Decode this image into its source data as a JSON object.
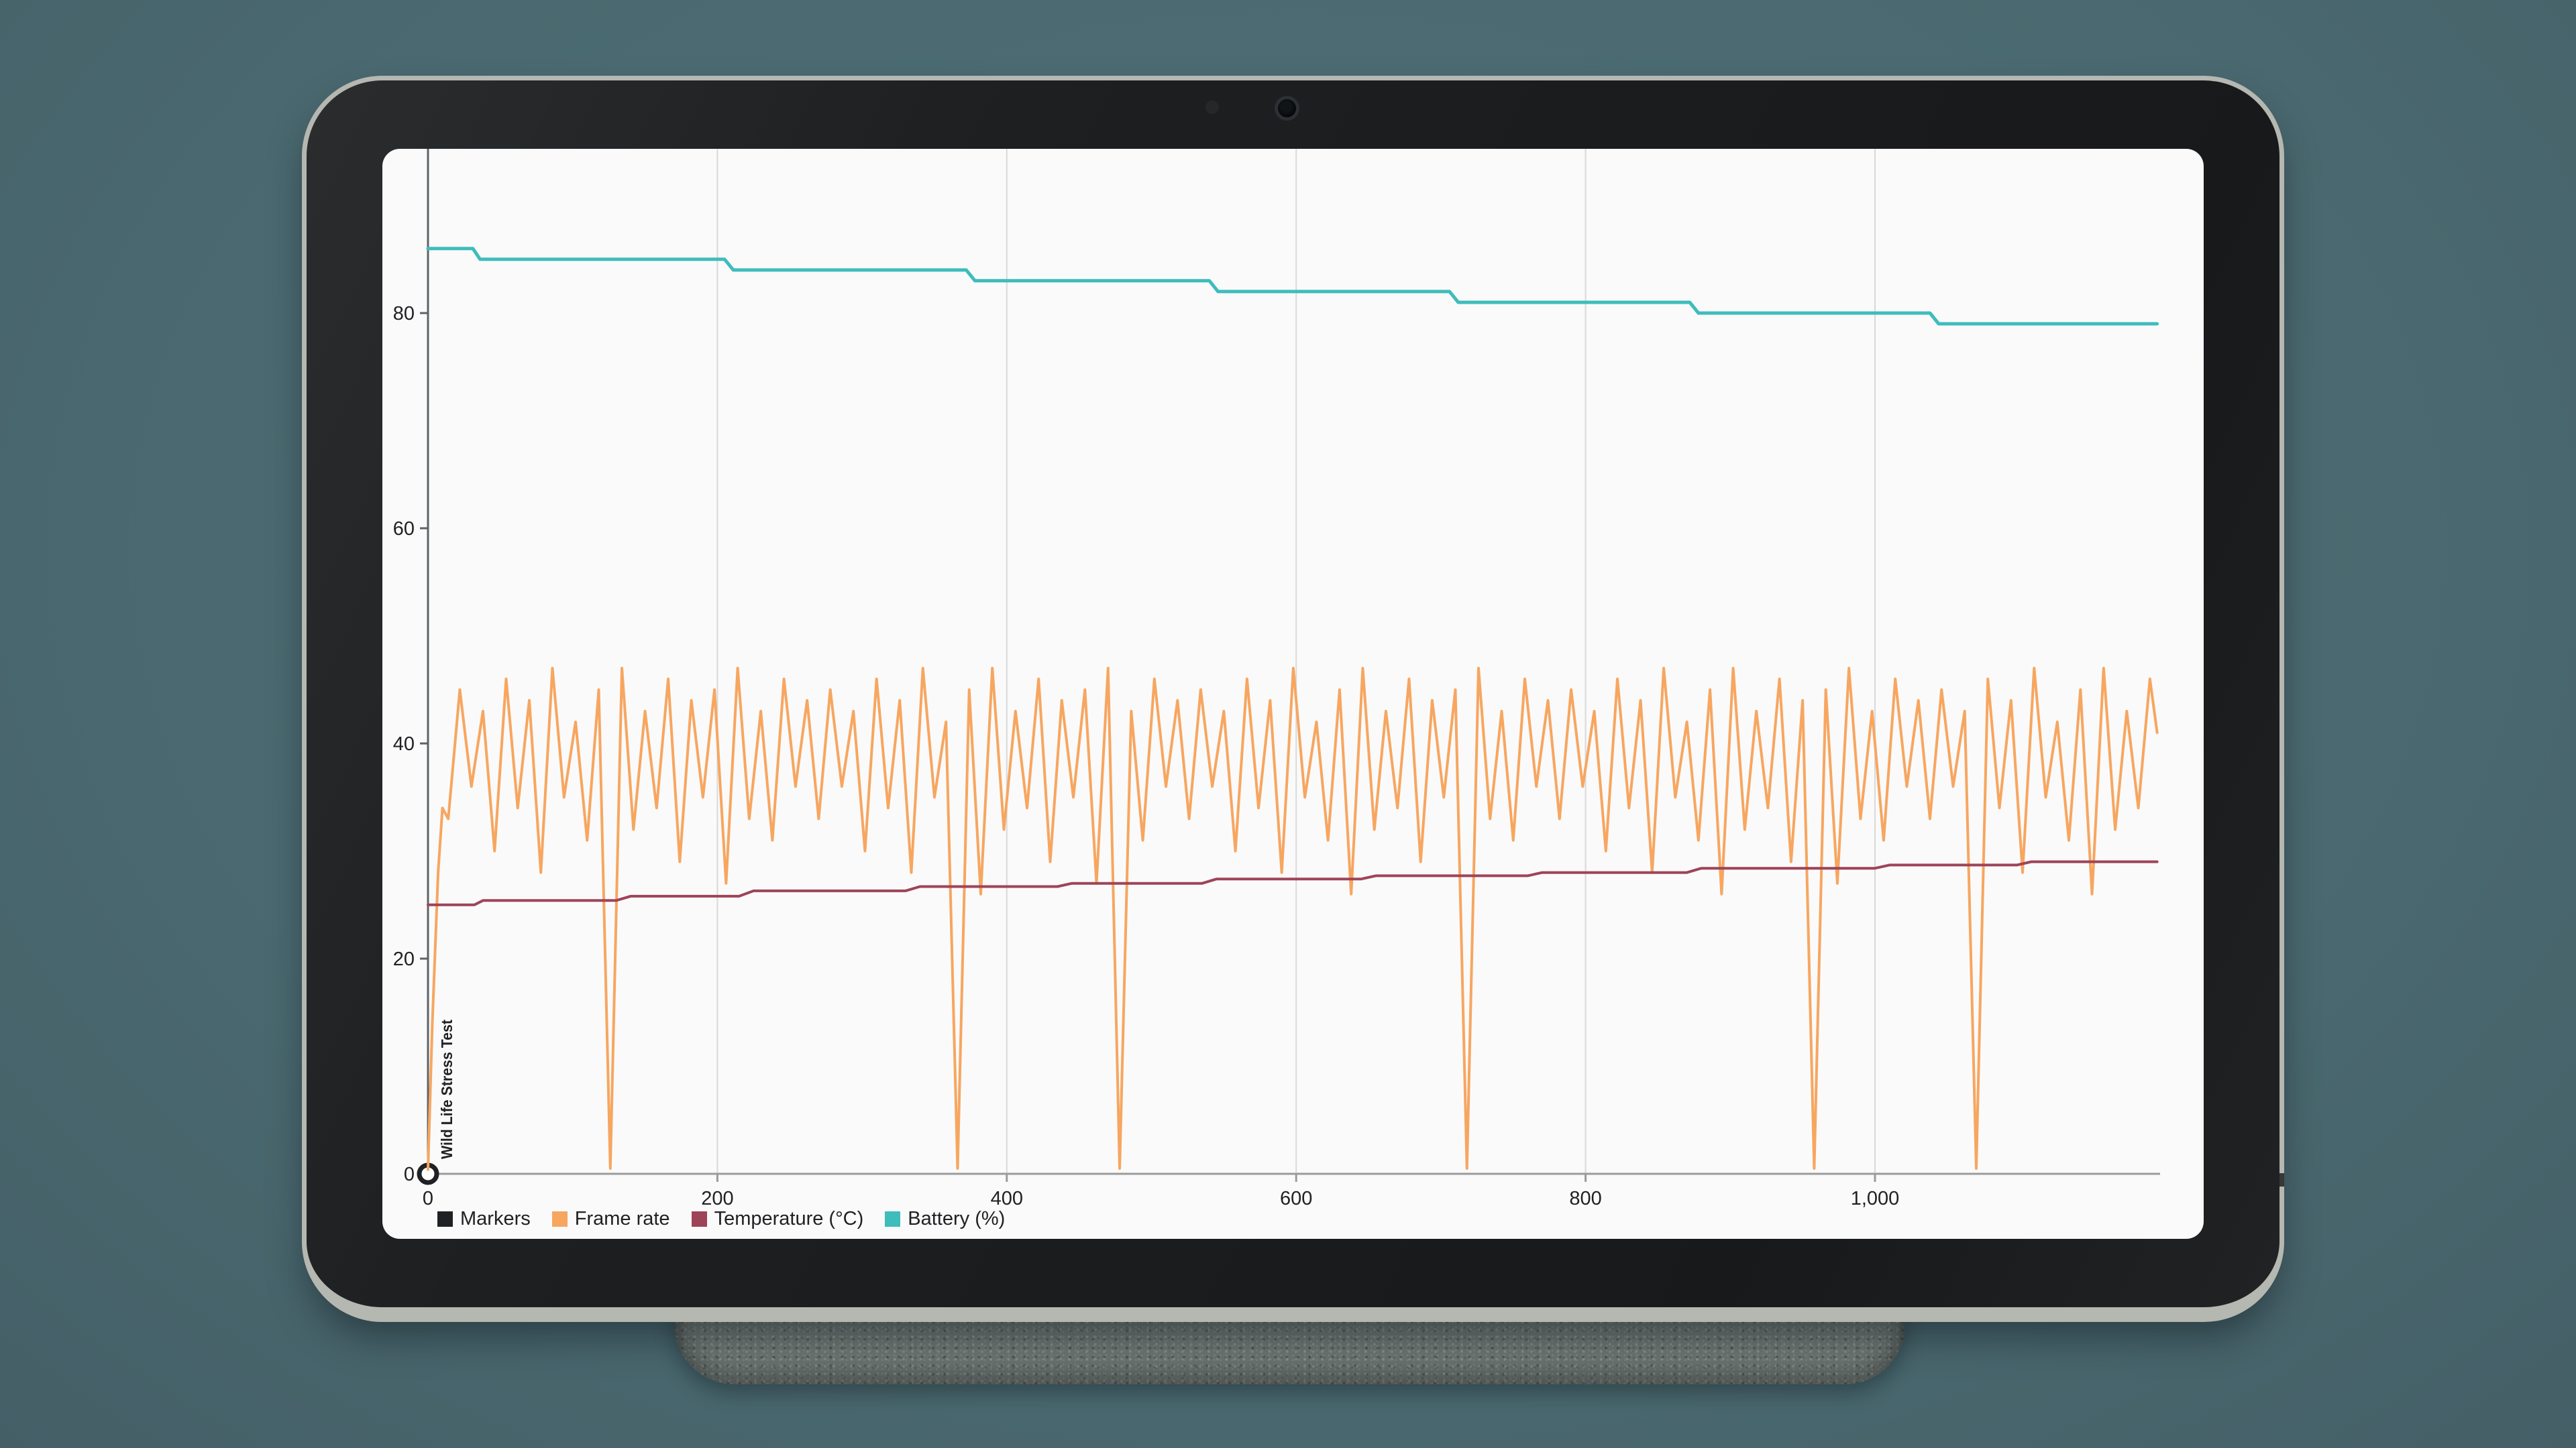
{
  "palette": {
    "bg": "#4a6970",
    "bg_hi": "#4f6e77",
    "bg_lo": "#455f67",
    "bezel": "#1d1f21",
    "frame_edge": "#b5b7b1",
    "dock": "#6e7773",
    "screen": "#fafafa",
    "gridline": "#d9d9d9",
    "axis_x": "#9b9b9b",
    "axis_y": "#5f6368",
    "text": "#202124"
  },
  "device": {
    "camera_icon": "front-camera-dot",
    "sensor_icon": "ambient-light-sensor-dot",
    "dock_name": "charging-speaker-dock"
  },
  "chart_data": {
    "type": "line",
    "title": "",
    "xlabel": "",
    "ylabel": "",
    "xlim": [
      0,
      1197
    ],
    "ylim": [
      0,
      95.3
    ],
    "grid": "vertical-only",
    "legend_position": "bottom-left",
    "x_ticks": {
      "values": [
        0,
        200,
        400,
        600,
        800,
        1000
      ],
      "labels": [
        "0",
        "200",
        "400",
        "600",
        "800",
        "1,000"
      ]
    },
    "y_ticks": {
      "values": [
        0,
        20,
        40,
        60,
        80
      ],
      "labels": [
        "0",
        "20",
        "40",
        "60",
        "80"
      ]
    },
    "series": [
      {
        "name": "Markers",
        "kind": "scatter",
        "color": "#202124",
        "marker": "ring",
        "annotation": "Wild Life Stress Test",
        "stroke_width": 7,
        "points": [
          [
            0,
            0
          ]
        ]
      },
      {
        "name": "Frame rate",
        "kind": "line",
        "color": "#f7a660",
        "stroke_width": 4,
        "points": [
          [
            0,
            0.4
          ],
          [
            3,
            14
          ],
          [
            7,
            28
          ],
          [
            10,
            34
          ],
          [
            14,
            33
          ],
          [
            22,
            45
          ],
          [
            30,
            36
          ],
          [
            38,
            43
          ],
          [
            46,
            30
          ],
          [
            54,
            46
          ],
          [
            62,
            34
          ],
          [
            70,
            44
          ],
          [
            78,
            28
          ],
          [
            86,
            47
          ],
          [
            94,
            35
          ],
          [
            102,
            42
          ],
          [
            110,
            31
          ],
          [
            118,
            45
          ],
          [
            126,
            0.5
          ],
          [
            134,
            47
          ],
          [
            142,
            32
          ],
          [
            150,
            43
          ],
          [
            158,
            34
          ],
          [
            166,
            46
          ],
          [
            174,
            29
          ],
          [
            182,
            44
          ],
          [
            190,
            35
          ],
          [
            198,
            45
          ],
          [
            206,
            27
          ],
          [
            214,
            47
          ],
          [
            222,
            33
          ],
          [
            230,
            43
          ],
          [
            238,
            31
          ],
          [
            246,
            46
          ],
          [
            254,
            36
          ],
          [
            262,
            44
          ],
          [
            270,
            33
          ],
          [
            278,
            45
          ],
          [
            286,
            36
          ],
          [
            294,
            43
          ],
          [
            302,
            30
          ],
          [
            310,
            46
          ],
          [
            318,
            34
          ],
          [
            326,
            44
          ],
          [
            334,
            28
          ],
          [
            342,
            47
          ],
          [
            350,
            35
          ],
          [
            358,
            42
          ],
          [
            366,
            0.5
          ],
          [
            374,
            45
          ],
          [
            382,
            26
          ],
          [
            390,
            47
          ],
          [
            398,
            32
          ],
          [
            406,
            43
          ],
          [
            414,
            34
          ],
          [
            422,
            46
          ],
          [
            430,
            29
          ],
          [
            438,
            44
          ],
          [
            446,
            35
          ],
          [
            454,
            45
          ],
          [
            462,
            27
          ],
          [
            470,
            47
          ],
          [
            478,
            0.5
          ],
          [
            486,
            43
          ],
          [
            494,
            31
          ],
          [
            502,
            46
          ],
          [
            510,
            36
          ],
          [
            518,
            44
          ],
          [
            526,
            33
          ],
          [
            534,
            45
          ],
          [
            542,
            36
          ],
          [
            550,
            43
          ],
          [
            558,
            30
          ],
          [
            566,
            46
          ],
          [
            574,
            34
          ],
          [
            582,
            44
          ],
          [
            590,
            28
          ],
          [
            598,
            47
          ],
          [
            606,
            35
          ],
          [
            614,
            42
          ],
          [
            622,
            31
          ],
          [
            630,
            45
          ],
          [
            638,
            26
          ],
          [
            646,
            47
          ],
          [
            654,
            32
          ],
          [
            662,
            43
          ],
          [
            670,
            34
          ],
          [
            678,
            46
          ],
          [
            686,
            29
          ],
          [
            694,
            44
          ],
          [
            702,
            35
          ],
          [
            710,
            45
          ],
          [
            718,
            0.5
          ],
          [
            726,
            47
          ],
          [
            734,
            33
          ],
          [
            742,
            43
          ],
          [
            750,
            31
          ],
          [
            758,
            46
          ],
          [
            766,
            36
          ],
          [
            774,
            44
          ],
          [
            782,
            33
          ],
          [
            790,
            45
          ],
          [
            798,
            36
          ],
          [
            806,
            43
          ],
          [
            814,
            30
          ],
          [
            822,
            46
          ],
          [
            830,
            34
          ],
          [
            838,
            44
          ],
          [
            846,
            28
          ],
          [
            854,
            47
          ],
          [
            862,
            35
          ],
          [
            870,
            42
          ],
          [
            878,
            31
          ],
          [
            886,
            45
          ],
          [
            894,
            26
          ],
          [
            902,
            47
          ],
          [
            910,
            32
          ],
          [
            918,
            43
          ],
          [
            926,
            34
          ],
          [
            934,
            46
          ],
          [
            942,
            29
          ],
          [
            950,
            44
          ],
          [
            958,
            0.5
          ],
          [
            966,
            45
          ],
          [
            974,
            27
          ],
          [
            982,
            47
          ],
          [
            990,
            33
          ],
          [
            998,
            43
          ],
          [
            1006,
            31
          ],
          [
            1014,
            46
          ],
          [
            1022,
            36
          ],
          [
            1030,
            44
          ],
          [
            1038,
            33
          ],
          [
            1046,
            45
          ],
          [
            1054,
            36
          ],
          [
            1062,
            43
          ],
          [
            1070,
            0.5
          ],
          [
            1078,
            46
          ],
          [
            1086,
            34
          ],
          [
            1094,
            44
          ],
          [
            1102,
            28
          ],
          [
            1110,
            47
          ],
          [
            1118,
            35
          ],
          [
            1126,
            42
          ],
          [
            1134,
            31
          ],
          [
            1142,
            45
          ],
          [
            1150,
            26
          ],
          [
            1158,
            47
          ],
          [
            1166,
            32
          ],
          [
            1174,
            43
          ],
          [
            1182,
            34
          ],
          [
            1190,
            46
          ],
          [
            1195,
            41
          ]
        ]
      },
      {
        "name": "Temperature (°C)",
        "kind": "line",
        "color": "#9e4458",
        "stroke_width": 4,
        "points": [
          [
            0,
            25
          ],
          [
            32,
            25
          ],
          [
            38,
            25.4
          ],
          [
            130,
            25.4
          ],
          [
            140,
            25.8
          ],
          [
            215,
            25.8
          ],
          [
            225,
            26.3
          ],
          [
            330,
            26.3
          ],
          [
            340,
            26.7
          ],
          [
            435,
            26.7
          ],
          [
            445,
            27
          ],
          [
            535,
            27
          ],
          [
            545,
            27.4
          ],
          [
            645,
            27.4
          ],
          [
            655,
            27.7
          ],
          [
            760,
            27.7
          ],
          [
            770,
            28
          ],
          [
            870,
            28
          ],
          [
            880,
            28.4
          ],
          [
            1000,
            28.4
          ],
          [
            1010,
            28.7
          ],
          [
            1098,
            28.7
          ],
          [
            1108,
            29
          ],
          [
            1195,
            29
          ]
        ]
      },
      {
        "name": "Battery (%)",
        "kind": "line",
        "color": "#3fbcbc",
        "stroke_width": 5,
        "points": [
          [
            0,
            86
          ],
          [
            31,
            86
          ],
          [
            36,
            85
          ],
          [
            205,
            85
          ],
          [
            211,
            84
          ],
          [
            372,
            84
          ],
          [
            378,
            83
          ],
          [
            540,
            83
          ],
          [
            546,
            82
          ],
          [
            706,
            82
          ],
          [
            712,
            81
          ],
          [
            872,
            81
          ],
          [
            878,
            80
          ],
          [
            1038,
            80
          ],
          [
            1044,
            79
          ],
          [
            1195,
            79
          ]
        ]
      }
    ]
  }
}
